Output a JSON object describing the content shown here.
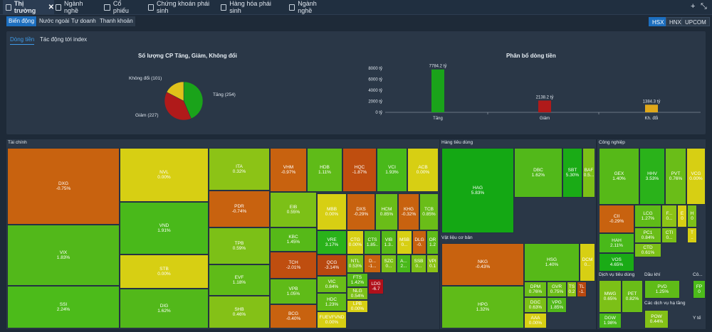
{
  "tabs": [
    {
      "label": "Thị trường",
      "active": true,
      "x": 4,
      "w": 64
    },
    {
      "label": "Ngành nghề",
      "x": 74,
      "w": 58
    },
    {
      "label": "Cổ phiếu",
      "x": 142,
      "w": 52
    },
    {
      "label": "Chứng khoán phái sinh",
      "x": 204,
      "w": 96
    },
    {
      "label": "Hàng hóa phái sinh",
      "x": 306,
      "w": 86
    },
    {
      "label": "Ngành nghề",
      "x": 402,
      "w": 60
    }
  ],
  "window_controls": {
    "add": "+",
    "collapse": "⤡"
  },
  "subnav": {
    "items": [
      "Biến động",
      "Nước ngoài",
      "Tự doanh",
      "Thanh khoản"
    ],
    "active": 0
  },
  "exchanges": {
    "items": [
      "HSX",
      "HNX",
      "UPCOM"
    ],
    "active": 0
  },
  "panel_tabs": {
    "items": [
      "Dòng tiền",
      "Tác động tới index"
    ],
    "active": 0
  },
  "pie": {
    "title": "Số lượng CP Tăng, Giảm, Không đổi",
    "labels": [
      "Tăng (254)",
      "Giảm (227)",
      "Không đổi (101)"
    ]
  },
  "bar": {
    "title": "Phân bổ dòng tiền",
    "yticks": [
      "8000 tỷ",
      "6000 tỷ",
      "4000 tỷ",
      "2000 tỷ",
      "0 tỷ"
    ],
    "data_labels": [
      "7784.2 tỷ",
      "2138.2 tỷ",
      "1384.3 tỷ"
    ],
    "xlabels": [
      "Tăng",
      "Giảm",
      "Kh. đổi"
    ]
  },
  "chart_data": [
    {
      "type": "pie",
      "title": "Số lượng CP Tăng, Giảm, Không đổi",
      "categories": [
        "Tăng",
        "Giảm",
        "Không đổi"
      ],
      "values": [
        254,
        227,
        101
      ],
      "colors": [
        "#1aa31a",
        "#b01a1a",
        "#e0c21a"
      ]
    },
    {
      "type": "bar",
      "title": "Phân bổ dòng tiền",
      "categories": [
        "Tăng",
        "Giảm",
        "Kh. đổi"
      ],
      "values": [
        7784.2,
        2138.2,
        1384.3
      ],
      "ylim": [
        0,
        8000
      ],
      "ylabel": "",
      "colors": [
        "#1aa31a",
        "#b01a1a",
        "#e0a81a"
      ]
    }
  ],
  "sectors": {
    "tai_chinh": "Tài chính",
    "hang_tieu_dung": "Hàng tiêu dùng",
    "cong_nghiep": "Công nghiệp",
    "vat_lieu": "Vật liệu cơ bản",
    "dich_vu_tieu_dung": "Dịch vụ tiêu dùng",
    "dau_khi": "Dầu khí",
    "co": "Cô...",
    "cs_ha_tang": "Các dịch vụ hạ tầng",
    "yte": "Y tế"
  },
  "cells": [
    {
      "s": "DXG",
      "p": "-0.75%",
      "c": "#c8620f",
      "x": 10,
      "y": 208,
      "w": 158,
      "h": 108
    },
    {
      "s": "VIX",
      "p": "1.83%",
      "c": "#52b81a",
      "x": 10,
      "y": 316,
      "w": 158,
      "h": 86
    },
    {
      "s": "SSI",
      "p": "2.24%",
      "c": "#4cbb1a",
      "x": 10,
      "y": 402,
      "w": 158,
      "h": 60
    },
    {
      "s": "NVL",
      "p": "0.00%",
      "c": "#d7cf13",
      "x": 168,
      "y": 208,
      "w": 125,
      "h": 76
    },
    {
      "s": "VND",
      "p": "1.91%",
      "c": "#49b91a",
      "x": 168,
      "y": 284,
      "w": 125,
      "h": 74
    },
    {
      "s": "STB",
      "p": "0.00%",
      "c": "#d7cf13",
      "x": 168,
      "y": 358,
      "w": 125,
      "h": 48
    },
    {
      "s": "DIG",
      "p": "1.62%",
      "c": "#52b81a",
      "x": 168,
      "y": 406,
      "w": 125,
      "h": 56
    },
    {
      "s": "ITA",
      "p": "0.32%",
      "c": "#8cc316",
      "x": 293,
      "y": 208,
      "w": 86,
      "h": 60
    },
    {
      "s": "PDR",
      "p": "-0.74%",
      "c": "#c8620f",
      "x": 293,
      "y": 268,
      "w": 86,
      "h": 52
    },
    {
      "s": "TPB",
      "p": "0.59%",
      "c": "#7cc017",
      "x": 293,
      "y": 320,
      "w": 86,
      "h": 52
    },
    {
      "s": "EVF",
      "p": "1.18%",
      "c": "#5fbb18",
      "x": 293,
      "y": 372,
      "w": 86,
      "h": 44
    },
    {
      "s": "SHB",
      "p": "0.46%",
      "c": "#84c117",
      "x": 293,
      "y": 416,
      "w": 86,
      "h": 46
    },
    {
      "s": "VHM",
      "p": "-0.97%",
      "c": "#c8620f",
      "x": 379,
      "y": 208,
      "w": 52,
      "h": 62
    },
    {
      "s": "HDB",
      "p": "1.11%",
      "c": "#5fbb18",
      "x": 431,
      "y": 208,
      "w": 50,
      "h": 62
    },
    {
      "s": "HQC",
      "p": "-1.87%",
      "c": "#bf4e0f",
      "x": 481,
      "y": 208,
      "w": 48,
      "h": 62
    },
    {
      "s": "VCI",
      "p": "1.93%",
      "c": "#49b91a",
      "x": 529,
      "y": 208,
      "w": 43,
      "h": 62
    },
    {
      "s": "ACB",
      "p": "0.00%",
      "c": "#d7cf13",
      "x": 572,
      "y": 208,
      "w": 44,
      "h": 62
    },
    {
      "s": "EIB",
      "p": "0.55%",
      "c": "#7cc017",
      "x": 379,
      "y": 270,
      "w": 66,
      "h": 50
    },
    {
      "s": "KBC",
      "p": "1.45%",
      "c": "#56b918",
      "x": 379,
      "y": 320,
      "w": 66,
      "h": 34
    },
    {
      "s": "TCH",
      "p": "-2.01%",
      "c": "#bf4e0f",
      "x": 379,
      "y": 354,
      "w": 66,
      "h": 38
    },
    {
      "s": "VPB",
      "p": "1.05%",
      "c": "#5fbb18",
      "x": 379,
      "y": 392,
      "w": 66,
      "h": 36
    },
    {
      "s": "BCG",
      "p": "-0.40%",
      "c": "#c8620f",
      "x": 379,
      "y": 428,
      "w": 66,
      "h": 34
    },
    {
      "s": "MBB",
      "p": "0.00%",
      "c": "#d7cf13",
      "x": 445,
      "y": 272,
      "w": 42,
      "h": 52
    },
    {
      "s": "DXS",
      "p": "-0.29%",
      "c": "#c8620f",
      "x": 487,
      "y": 272,
      "w": 40,
      "h": 52
    },
    {
      "s": "HCM",
      "p": "0.85%",
      "c": "#6abd18",
      "x": 527,
      "y": 272,
      "w": 32,
      "h": 52
    },
    {
      "s": "KHG",
      "p": "-0.32%",
      "c": "#c8620f",
      "x": 559,
      "y": 272,
      "w": 30,
      "h": 52
    },
    {
      "s": "TCB",
      "p": "0.85%",
      "c": "#6abd18",
      "x": 589,
      "y": 272,
      "w": 27,
      "h": 52
    },
    {
      "s": "VRE",
      "p": "3.17%",
      "c": "#2ab21a",
      "x": 445,
      "y": 324,
      "w": 42,
      "h": 34
    },
    {
      "s": "CTG",
      "p": "0.00%",
      "c": "#d7cf13",
      "x": 487,
      "y": 324,
      "w": 24,
      "h": 34
    },
    {
      "s": "CTS",
      "p": "1.85..",
      "c": "#52b81a",
      "x": 511,
      "y": 324,
      "w": 24,
      "h": 34
    },
    {
      "s": "VIB",
      "p": "1.3..",
      "c": "#56b918",
      "x": 535,
      "y": 324,
      "w": 22,
      "h": 34
    },
    {
      "s": "MSB",
      "p": "0...",
      "c": "#d7cf13",
      "x": 557,
      "y": 324,
      "w": 22,
      "h": 34
    },
    {
      "s": "DLG",
      "p": "-0.",
      "c": "#c8620f",
      "x": 579,
      "y": 324,
      "w": 20,
      "h": 34
    },
    {
      "s": "OR",
      "p": "1.2",
      "c": "#5fbb18",
      "x": 599,
      "y": 324,
      "w": 17,
      "h": 34
    },
    {
      "s": "QCG",
      "p": "-3.14%",
      "c": "#b8480f",
      "x": 445,
      "y": 358,
      "w": 42,
      "h": 30
    },
    {
      "s": "NTL",
      "p": "0.53%",
      "c": "#7cc017",
      "x": 487,
      "y": 358,
      "w": 24,
      "h": 26
    },
    {
      "s": "D...",
      "p": "-1...",
      "c": "#c8620f",
      "x": 511,
      "y": 358,
      "w": 24,
      "h": 26
    },
    {
      "s": "SZC",
      "p": "0...",
      "c": "#7cc017",
      "x": 535,
      "y": 358,
      "w": 22,
      "h": 26
    },
    {
      "s": "A...",
      "p": "2...",
      "c": "#49b91a",
      "x": 557,
      "y": 358,
      "w": 20,
      "h": 26
    },
    {
      "s": "SSB",
      "p": "0...",
      "c": "#7cc017",
      "x": 577,
      "y": 358,
      "w": 22,
      "h": 26
    },
    {
      "s": "VPI",
      "p": "0.1",
      "c": "#8cc316",
      "x": 599,
      "y": 358,
      "w": 17,
      "h": 26
    },
    {
      "s": "VIC",
      "p": "0.84%",
      "c": "#6abd18",
      "x": 445,
      "y": 388,
      "w": 42,
      "h": 24
    },
    {
      "s": "HDC",
      "p": "1.23%",
      "c": "#5fbb18",
      "x": 445,
      "y": 412,
      "w": 42,
      "h": 26
    },
    {
      "s": "FUEVFVND",
      "p": "0.00%",
      "c": "#d7cf13",
      "x": 445,
      "y": 438,
      "w": 42,
      "h": 24
    },
    {
      "s": "FTS",
      "p": "1.42%",
      "c": "#56b918",
      "x": 487,
      "y": 384,
      "w": 30,
      "h": 20
    },
    {
      "s": "NLG",
      "p": "0.54%",
      "c": "#7cc017",
      "x": 487,
      "y": 404,
      "w": 30,
      "h": 18
    },
    {
      "s": "LPB",
      "p": "0.00%",
      "c": "#d7cf13",
      "x": 487,
      "y": 422,
      "w": 30,
      "h": 18
    },
    {
      "s": "LDG",
      "p": "-6.7",
      "c": "#b0101a",
      "x": 517,
      "y": 392,
      "w": 22,
      "h": 22
    },
    {
      "s": "HAG",
      "p": "5.83%",
      "c": "#14a814",
      "x": 620,
      "y": 208,
      "w": 102,
      "h": 120
    },
    {
      "s": "DBC",
      "p": "1.62%",
      "c": "#52b81a",
      "x": 722,
      "y": 208,
      "w": 68,
      "h": 70
    },
    {
      "s": "SBT",
      "p": "5.30%",
      "c": "#1aab16",
      "x": 790,
      "y": 208,
      "w": 28,
      "h": 70
    },
    {
      "s": "BAF",
      "p": "0.5...",
      "c": "#7cc017",
      "x": 818,
      "y": 208,
      "w": 18,
      "h": 70
    },
    {
      "s": "NKG",
      "p": "-0.43%",
      "c": "#c8620f",
      "x": 620,
      "y": 342,
      "w": 116,
      "h": 60
    },
    {
      "s": "HPG",
      "p": "1.32%",
      "c": "#5fbb18",
      "x": 620,
      "y": 402,
      "w": 116,
      "h": 60
    },
    {
      "s": "HSG",
      "p": "1.40%",
      "c": "#56b918",
      "x": 736,
      "y": 342,
      "w": 78,
      "h": 54
    },
    {
      "s": "DCM",
      "p": "0...",
      "c": "#d7cf13",
      "x": 814,
      "y": 342,
      "w": 22,
      "h": 54
    },
    {
      "s": "DPM",
      "p": "0.76%",
      "c": "#6abd18",
      "x": 736,
      "y": 396,
      "w": 32,
      "h": 22
    },
    {
      "s": "GVR",
      "p": "0.75%",
      "c": "#6abd18",
      "x": 768,
      "y": 396,
      "w": 28,
      "h": 22
    },
    {
      "s": "TS",
      "p": "0.2",
      "c": "#8cc316",
      "x": 796,
      "y": 396,
      "w": 14,
      "h": 22
    },
    {
      "s": "TL",
      "p": "-1.",
      "c": "#b8480f",
      "x": 810,
      "y": 396,
      "w": 14,
      "h": 22
    },
    {
      "s": "DGC",
      "p": "0.63%",
      "c": "#7cc017",
      "x": 736,
      "y": 418,
      "w": 32,
      "h": 22
    },
    {
      "s": "VPG",
      "p": "1.85%",
      "c": "#52b81a",
      "x": 768,
      "y": 418,
      "w": 28,
      "h": 22
    },
    {
      "s": "AAA",
      "p": "0.00%",
      "c": "#d7cf13",
      "x": 736,
      "y": 440,
      "w": 32,
      "h": 22
    },
    {
      "s": "GEX",
      "p": "1.40%",
      "c": "#56b918",
      "x": 841,
      "y": 208,
      "w": 57,
      "h": 80
    },
    {
      "s": "HHV",
      "p": "3.53%",
      "c": "#2ab21a",
      "x": 898,
      "y": 208,
      "w": 36,
      "h": 80
    },
    {
      "s": "PVT",
      "p": "0.76%",
      "c": "#6abd18",
      "x": 934,
      "y": 208,
      "w": 30,
      "h": 80
    },
    {
      "s": "VCG",
      "p": "0.00%",
      "c": "#d7cf13",
      "x": 964,
      "y": 208,
      "w": 27,
      "h": 80
    },
    {
      "s": "CII",
      "p": "-0.29%",
      "c": "#c8620f",
      "x": 841,
      "y": 288,
      "w": 50,
      "h": 40
    },
    {
      "s": "LCG",
      "p": "1.27%",
      "c": "#5fbb18",
      "x": 891,
      "y": 288,
      "w": 38,
      "h": 32
    },
    {
      "s": "F...",
      "p": "0...",
      "c": "#8cc316",
      "x": 929,
      "y": 288,
      "w": 22,
      "h": 32
    },
    {
      "s": "E",
      "p": "0",
      "c": "#d7cf13",
      "x": 951,
      "y": 288,
      "w": 14,
      "h": 32
    },
    {
      "s": "H",
      "p": "0",
      "c": "#7cc017",
      "x": 965,
      "y": 288,
      "w": 14,
      "h": 32
    },
    {
      "s": "HAH",
      "p": "2.11%",
      "c": "#49b91a",
      "x": 841,
      "y": 328,
      "w": 50,
      "h": 28
    },
    {
      "s": "PC1",
      "p": "0.84%",
      "c": "#6abd18",
      "x": 891,
      "y": 320,
      "w": 38,
      "h": 22
    },
    {
      "s": "CTI",
      "p": "0...",
      "c": "#7cc017",
      "x": 929,
      "y": 320,
      "w": 22,
      "h": 22
    },
    {
      "s": "T",
      "p": "..",
      "c": "#d7cf13",
      "x": 965,
      "y": 320,
      "w": 14,
      "h": 22
    },
    {
      "s": "VOS",
      "p": "4.65%",
      "c": "#1aab16",
      "x": 841,
      "y": 356,
      "w": 50,
      "h": 26
    },
    {
      "s": "CTD",
      "p": "0.61%",
      "c": "#7cc017",
      "x": 891,
      "y": 342,
      "w": 38,
      "h": 20
    },
    {
      "s": "MWG",
      "p": "0.65%",
      "c": "#7cc017",
      "x": 841,
      "y": 394,
      "w": 32,
      "h": 46
    },
    {
      "s": "PET",
      "p": "0.82%",
      "c": "#6abd18",
      "x": 873,
      "y": 394,
      "w": 30,
      "h": 46
    },
    {
      "s": "DGW",
      "p": "1.98%",
      "c": "#49b91a",
      "x": 841,
      "y": 440,
      "w": 32,
      "h": 22
    },
    {
      "s": "PVD",
      "p": "1.25%",
      "c": "#5fbb18",
      "x": 905,
      "y": 394,
      "w": 50,
      "h": 26
    },
    {
      "s": "POW",
      "p": "0.44%",
      "c": "#84c117",
      "x": 905,
      "y": 436,
      "w": 34,
      "h": 26
    },
    {
      "s": "FP",
      "p": "0",
      "c": "#4cbb1a",
      "x": 973,
      "y": 394,
      "w": 18,
      "h": 26
    }
  ]
}
